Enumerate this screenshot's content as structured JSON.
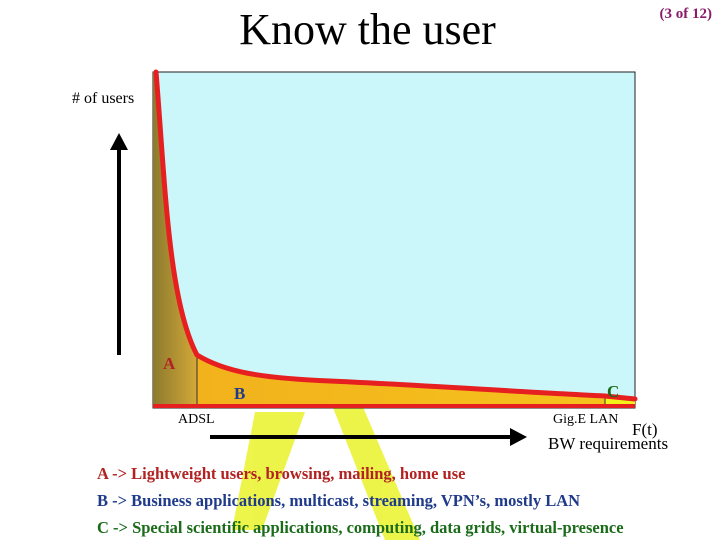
{
  "slide": {
    "title": "Know the user",
    "page_indicator": "(3 of 12)"
  },
  "chart": {
    "ylabel": "# of users",
    "xlabel": "BW requirements",
    "function_label": "F(t)",
    "tick_left": "ADSL",
    "tick_right": "Gig.E LAN",
    "regions": {
      "a": "A",
      "b": "B",
      "c": "C"
    }
  },
  "legend": [
    {
      "key": "A",
      "text": "A -> Lightweight users, browsing, mailing, home use",
      "color": "#b22222"
    },
    {
      "key": "B",
      "text": "B -> Business applications, multicast, streaming, VPN’s, mostly LAN",
      "color": "#1f3a8a"
    },
    {
      "key": "C",
      "text": "C -> Special scientific applications, computing, data grids, virtual-presence",
      "color": "#1a6b1a"
    }
  ],
  "colors": {
    "plot_bg": "#ccf7fa",
    "curve": "#e62020",
    "fill_a": "#c9a43a",
    "fill_b": "#f2b21c",
    "fill_c": "#f2f21a",
    "watermark": "#e6f21a"
  }
}
